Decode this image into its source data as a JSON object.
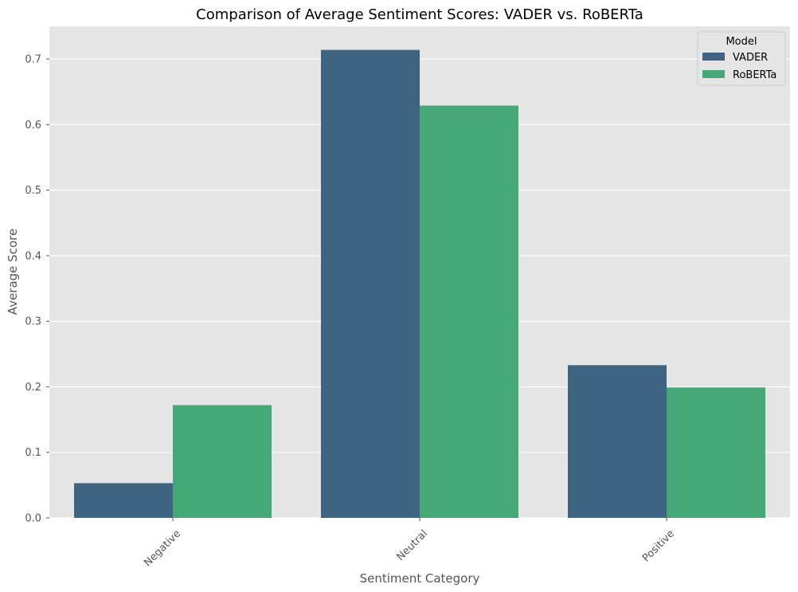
{
  "chart_data": {
    "type": "bar",
    "title": "Comparison of Average Sentiment Scores: VADER vs. RoBERTa",
    "xlabel": "Sentiment Category",
    "ylabel": "Average Score",
    "categories": [
      "Negative",
      "Neutral",
      "Positive"
    ],
    "series": [
      {
        "name": "VADER",
        "color": "#3e6482",
        "values": [
          0.053,
          0.714,
          0.233
        ]
      },
      {
        "name": "RoBERTa",
        "color": "#46a877",
        "values": [
          0.172,
          0.629,
          0.199
        ]
      }
    ],
    "ylim": [
      0,
      0.75
    ],
    "yticks": [
      "0.0",
      "0.1",
      "0.2",
      "0.3",
      "0.4",
      "0.5",
      "0.6",
      "0.7"
    ],
    "grid": true,
    "legend": {
      "title": "Model",
      "placement": "top-right"
    },
    "background_color": "#e5e5e5",
    "grid_color": "#ffffff"
  }
}
